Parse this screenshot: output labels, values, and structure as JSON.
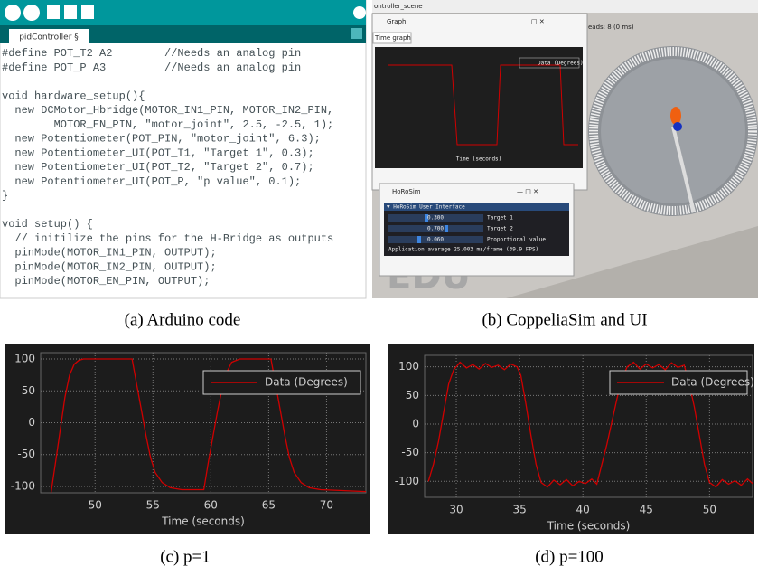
{
  "panels": {
    "code": {
      "tab": "pidController §",
      "caption": "(a) Arduino code",
      "lines": [
        "#define POT_T2 A2        //Needs an analog pin",
        "#define POT_P A3         //Needs an analog pin",
        "void hardware_setup(){",
        "  new DCMotor_Hbridge(MOTOR_IN1_PIN, MOTOR_IN2_PIN,",
        "        MOTOR_EN_PIN, \"motor_joint\", 2.5, -2.5, 1);",
        "  new Potentiometer(POT_PIN, \"motor_joint\", 6.3);",
        "  new Potentiometer_UI(POT_T1, \"Target 1\", 0.3);",
        "  new Potentiometer_UI(POT_T2, \"Target 2\", 0.7);",
        "  new Potentiometer_UI(POT_P, \"p value\", 0.1);",
        "}",
        "void setup() {",
        "  // initilize the pins for the H-Bridge as outputs",
        "  pinMode(MOTOR_IN1_PIN, OUTPUT);",
        "  pinMode(MOTOR_IN2_PIN, OUTPUT);",
        "  pinMode(MOTOR_EN_PIN, OUTPUT);"
      ]
    },
    "sim": {
      "caption": "(b) CoppeliaSim and UI",
      "scene_tab": "ontroller_scene",
      "status": "eads: 8 (0 ms)",
      "graph_window": "Graph",
      "graph_tab": "Time graph",
      "graph_legend": "Data (Degrees)",
      "graph_xlabel": "Time (seconds)",
      "ui_window": "HoRoSim",
      "ui_panel": "▼ HoRoSim User Interface",
      "sliders": [
        {
          "value": "0.300",
          "label": "Target 1"
        },
        {
          "value": "0.700",
          "label": "Target 2"
        },
        {
          "value": "0.060",
          "label": "Proportional value"
        }
      ],
      "fps": "Application average 25.003 ms/frame (39.9 FPS)",
      "watermark": "EDU"
    }
  },
  "plots": [
    {
      "caption": "(c) p=1",
      "xlabel": "Time (seconds)",
      "xlim": [
        45.3,
        73.4
      ],
      "ylim": [
        -110,
        110
      ],
      "xticks": [
        50,
        55,
        60,
        65,
        70
      ],
      "yticks": [
        -100,
        -50,
        0,
        50,
        100
      ],
      "grid": true,
      "series": [
        {
          "name": "Data (Degrees)",
          "color": "#d00000",
          "x": [
            46.2,
            46.6,
            47.0,
            47.4,
            47.8,
            48.2,
            48.6,
            49,
            53.2,
            53.6,
            54.0,
            54.4,
            54.8,
            55.2,
            55.8,
            56.5,
            57.5,
            59.4,
            59.8,
            60.2,
            60.6,
            61.0,
            61.4,
            61.8,
            62.5,
            65.2,
            65.6,
            66.0,
            66.4,
            66.8,
            67.2,
            67.8,
            68.5,
            69.5,
            73.4
          ],
          "y": [
            -110,
            -60,
            -10,
            40,
            75,
            92,
            98,
            100,
            100,
            60,
            20,
            -20,
            -55,
            -78,
            -94,
            -102,
            -105,
            -105,
            -60,
            -20,
            20,
            55,
            80,
            95,
            100,
            100,
            60,
            20,
            -20,
            -55,
            -78,
            -94,
            -102,
            -105,
            -108
          ]
        }
      ]
    },
    {
      "caption": "(d) p=100",
      "xlabel": "Time (seconds)",
      "xlim": [
        27.5,
        53.4
      ],
      "ylim": [
        -128,
        120
      ],
      "xticks": [
        30,
        35,
        40,
        45,
        50
      ],
      "yticks": [
        -100,
        -50,
        0,
        50,
        100
      ],
      "grid": true,
      "series": [
        {
          "name": "Data (Degrees)",
          "color": "#d00000",
          "x": [
            27.8,
            28.2,
            28.6,
            29.0,
            29.4,
            29.8,
            30.3,
            30.8,
            31.3,
            31.8,
            32.3,
            32.8,
            33.3,
            33.8,
            34.3,
            34.8,
            35.1,
            35.5,
            35.9,
            36.3,
            36.7,
            37.2,
            37.7,
            38.2,
            38.7,
            39.2,
            39.7,
            40.2,
            40.7,
            41.1,
            41.5,
            41.9,
            42.3,
            42.7,
            43.1,
            43.5,
            44.0,
            44.5,
            45.0,
            45.5,
            46.0,
            46.5,
            47.0,
            47.5,
            48.0,
            48.4,
            48.8,
            49.2,
            49.6,
            50.0,
            50.5,
            51.0,
            51.5,
            52.0,
            52.5,
            53.0,
            53.4
          ],
          "y": [
            -100,
            -70,
            -30,
            20,
            70,
            95,
            108,
            98,
            104,
            96,
            106,
            99,
            103,
            95,
            105,
            100,
            85,
            35,
            -20,
            -70,
            -102,
            -110,
            -98,
            -106,
            -97,
            -108,
            -100,
            -104,
            -96,
            -105,
            -70,
            -35,
            5,
            45,
            80,
            100,
            108,
            96,
            105,
            98,
            104,
            95,
            107,
            99,
            103,
            70,
            30,
            -20,
            -70,
            -102,
            -110,
            -97,
            -105,
            -99,
            -107,
            -96,
            -104
          ]
        }
      ]
    }
  ]
}
